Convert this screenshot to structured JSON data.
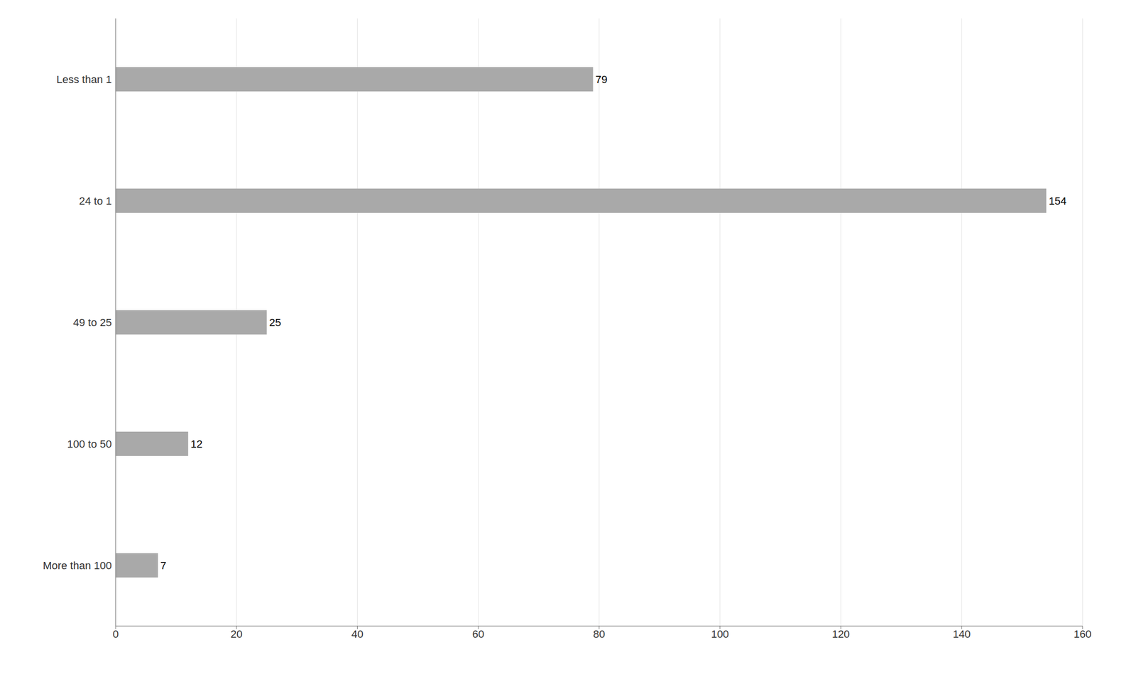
{
  "chart_data": {
    "type": "bar",
    "orientation": "horizontal",
    "categories": [
      "Less than 1",
      "24 to 1",
      "49 to 25",
      "100 to 50",
      "More than 100"
    ],
    "values": [
      79,
      154,
      25,
      12,
      7
    ],
    "color": "#a9a9a9",
    "xlim": [
      0,
      160
    ],
    "xticks": [
      0,
      20,
      40,
      60,
      80,
      100,
      120,
      140,
      160
    ],
    "grid": true,
    "data_labels": true
  }
}
